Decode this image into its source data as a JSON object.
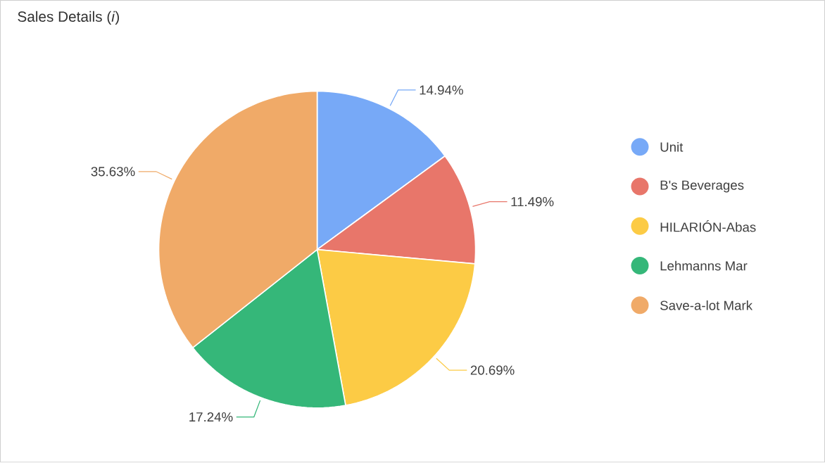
{
  "chart_data": {
    "type": "pie",
    "title": "Sales Details (*i*)",
    "categories": [
      "Unit",
      "B's Beverages",
      "HILARIÓN-Abas",
      "Lehmanns Mar",
      "Save-a-lot Mark"
    ],
    "values": [
      14.94,
      11.49,
      20.69,
      17.24,
      35.63
    ],
    "value_labels": [
      "14.94%",
      "11.49%",
      "20.69%",
      "17.24%",
      "35.63%"
    ],
    "colors": [
      "#77a9f7",
      "#e8766a",
      "#fccb45",
      "#35b779",
      "#f0aa68"
    ],
    "legend": "right"
  }
}
